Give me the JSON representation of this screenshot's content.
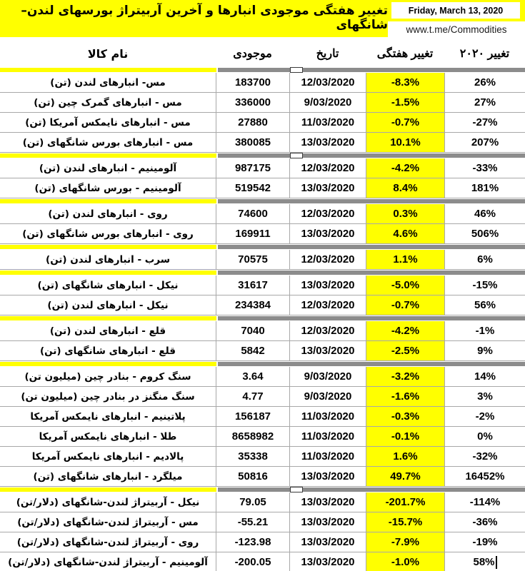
{
  "header": {
    "title": "تغییر هفتگی موجودی انبارها و آخرین آربیتراژ بورسهای لندن–شانگهای",
    "date": "Friday, March 13, 2020",
    "url": "www.t.me/Commodities"
  },
  "colors": {
    "banner_yellow": "#FFFF00",
    "weekly_cell_yellow": "#FFFF00",
    "separator_gray": "#8C8C8C",
    "grid_border": "#A8A8A8",
    "text": "#000000"
  },
  "chart_data": {
    "type": "table",
    "title": "تغییر هفتگی موجودی انبارها و آخرین آربیتراژ بورسهای لندن–شانگهای",
    "columns": [
      "نام کالا",
      "موجودی",
      "تاریخ",
      "تغییر هفتگی",
      "تغییر ۲۰۲۰"
    ],
    "rows": [
      [
        "مس- انبارهای لندن (تن)",
        "183700",
        "12/03/2020",
        "-8.3%",
        "26%"
      ],
      [
        "مس - انبارهای گمرک چین (تن)",
        "336000",
        "9/03/2020",
        "-1.5%",
        "27%"
      ],
      [
        "مس - انبارهای نایمکس آمریکا (تن)",
        "27880",
        "11/03/2020",
        "-0.7%",
        "-27%"
      ],
      [
        "مس - انبارهای بورس شانگهای (تن)",
        "380085",
        "13/03/2020",
        "10.1%",
        "207%"
      ],
      [
        "آلومینیم - انبارهای لندن (تن)",
        "987175",
        "12/03/2020",
        "-4.2%",
        "-33%"
      ],
      [
        "آلومینیم - بورس شانگهای (تن)",
        "519542",
        "13/03/2020",
        "8.4%",
        "181%"
      ],
      [
        "روی - انبارهای لندن (تن)",
        "74600",
        "12/03/2020",
        "0.3%",
        "46%"
      ],
      [
        "روی - انبارهای بورس شانگهای (تن)",
        "169911",
        "13/03/2020",
        "4.6%",
        "506%"
      ],
      [
        "سرب - انبارهای لندن (تن)",
        "70575",
        "12/03/2020",
        "1.1%",
        "6%"
      ],
      [
        "نیکل - انبارهای شانگهای (تن)",
        "31617",
        "13/03/2020",
        "-5.0%",
        "-15%"
      ],
      [
        "نیکل - انبارهای لندن (تن)",
        "234384",
        "12/03/2020",
        "-0.7%",
        "56%"
      ],
      [
        "قلع - انبارهای لندن (تن)",
        "7040",
        "12/03/2020",
        "-4.2%",
        "-1%"
      ],
      [
        "قلع - انبارهای شانگهای (تن)",
        "5842",
        "13/03/2020",
        "-2.5%",
        "9%"
      ],
      [
        "سنگ کروم - بنادر چین (میلیون تن)",
        "3.64",
        "9/03/2020",
        "-3.2%",
        "14%"
      ],
      [
        "سنگ منگنز در بنادر چین (میلیون تن)",
        "4.77",
        "9/03/2020",
        "-1.6%",
        "3%"
      ],
      [
        "پلاتینیم - انبارهای نایمکس آمریکا",
        "156187",
        "11/03/2020",
        "-0.3%",
        "-2%"
      ],
      [
        "طلا - انبارهای نایمکس آمریکا",
        "8658982",
        "11/03/2020",
        "-0.1%",
        "0%"
      ],
      [
        "پالادیم - انبارهای نایمکس آمریکا",
        "35338",
        "11/03/2020",
        "1.6%",
        "-32%"
      ],
      [
        "میلگرد - انبارهای شانگهای (تن)",
        "50816",
        "13/03/2020",
        "49.7%",
        "16452%"
      ],
      [
        "نیکل - آربیتراژ لندن-شانگهای (دلار/تن)",
        "79.05",
        "13/03/2020",
        "-201.7%",
        "-114%"
      ],
      [
        "مس - آربیتراژ لندن-شانگهای (دلار/تن)",
        "-55.21",
        "13/03/2020",
        "-15.7%",
        "-36%"
      ],
      [
        "روی - آربیتراژ لندن-شانگهای (دلار/تن)",
        "-123.98",
        "13/03/2020",
        "-7.9%",
        "-19%"
      ],
      [
        "آلومینیم - آربیتراژ لندن-شانگهای (دلار/تن)",
        "-200.05",
        "13/03/2020",
        "-1.0%",
        "58%"
      ]
    ],
    "section_breaks_after": [
      3,
      5,
      7,
      8,
      10,
      12,
      18
    ],
    "layout_hints": {
      "grid": true,
      "rtl": true,
      "weekly_change_column_highlighted": true
    }
  }
}
